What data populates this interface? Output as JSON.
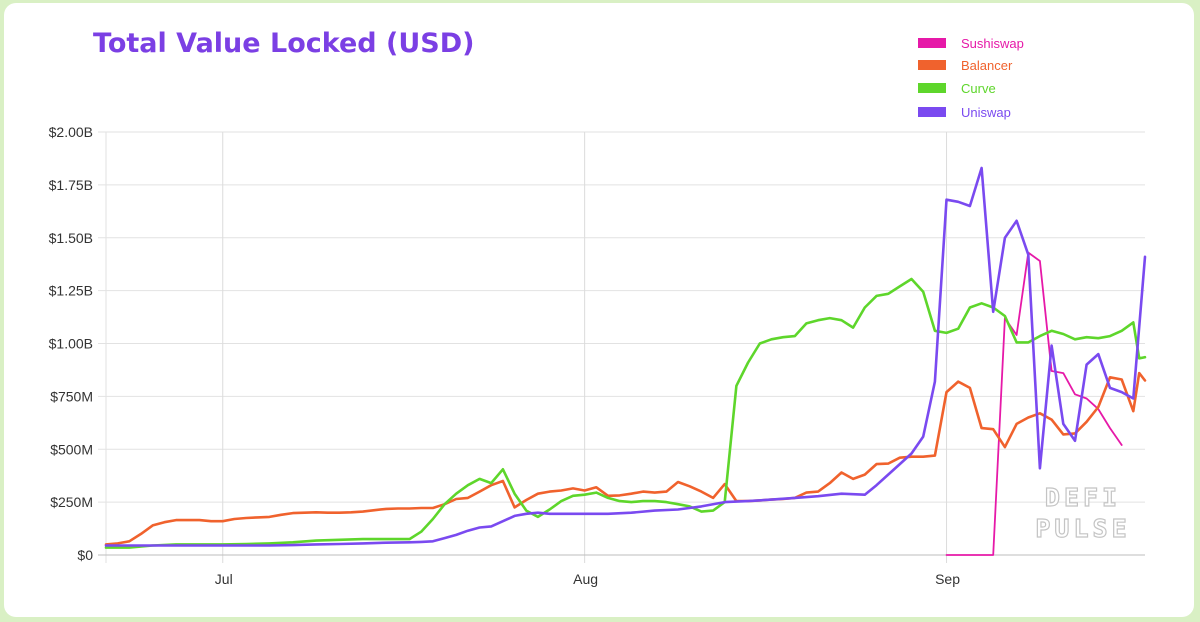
{
  "page_title": "Total Value Locked (USD)",
  "watermark": {
    "line1": "DEFI",
    "line2": "PULSE"
  },
  "chart_data": {
    "type": "line",
    "title": "Total Value Locked (USD)",
    "xlabel": "",
    "ylabel": "",
    "ylim": [
      0,
      2000000000
    ],
    "yticks": [
      {
        "value": 0,
        "label": "$0"
      },
      {
        "value": 250000000,
        "label": "$250M"
      },
      {
        "value": 500000000,
        "label": "$500M"
      },
      {
        "value": 750000000,
        "label": "$750M"
      },
      {
        "value": 1000000000,
        "label": "$1.00B"
      },
      {
        "value": 1250000000,
        "label": "$1.25B"
      },
      {
        "value": 1500000000,
        "label": "$1.50B"
      },
      {
        "value": 1750000000,
        "label": "$1.75B"
      },
      {
        "value": 2000000000,
        "label": "$2.00B"
      }
    ],
    "xlim": [
      "2020-06-21",
      "2020-09-18"
    ],
    "xticks": [
      {
        "date": "2020-07-01",
        "label": "Jul"
      },
      {
        "date": "2020-08-01",
        "label": "Aug"
      },
      {
        "date": "2020-09-01",
        "label": "Sep"
      }
    ],
    "grid": true,
    "legend_position": "top-right",
    "series": [
      {
        "name": "Sushiswap",
        "color": "#e619a8",
        "unit": "USD (millions)",
        "points": [
          [
            "2020-09-01",
            0
          ],
          [
            "2020-09-02",
            0
          ],
          [
            "2020-09-03",
            0
          ],
          [
            "2020-09-04",
            0
          ],
          [
            "2020-09-05",
            0
          ],
          [
            "2020-09-06",
            1120
          ],
          [
            "2020-09-07",
            1040
          ],
          [
            "2020-09-08",
            1430
          ],
          [
            "2020-09-09",
            1390
          ],
          [
            "2020-09-10",
            870
          ],
          [
            "2020-09-11",
            860
          ],
          [
            "2020-09-12",
            760
          ],
          [
            "2020-09-13",
            740
          ],
          [
            "2020-09-14",
            690
          ],
          [
            "2020-09-15",
            600
          ],
          [
            "2020-09-16",
            520
          ]
        ]
      },
      {
        "name": "Balancer",
        "color": "#f0622d",
        "unit": "USD (millions)",
        "points": [
          [
            "2020-06-21",
            50
          ],
          [
            "2020-06-22",
            55
          ],
          [
            "2020-06-23",
            65
          ],
          [
            "2020-06-24",
            100
          ],
          [
            "2020-06-25",
            140
          ],
          [
            "2020-06-26",
            155
          ],
          [
            "2020-06-27",
            165
          ],
          [
            "2020-06-28",
            165
          ],
          [
            "2020-06-29",
            165
          ],
          [
            "2020-06-30",
            160
          ],
          [
            "2020-07-01",
            160
          ],
          [
            "2020-07-02",
            170
          ],
          [
            "2020-07-03",
            175
          ],
          [
            "2020-07-04",
            178
          ],
          [
            "2020-07-05",
            180
          ],
          [
            "2020-07-06",
            190
          ],
          [
            "2020-07-07",
            198
          ],
          [
            "2020-07-08",
            200
          ],
          [
            "2020-07-09",
            202
          ],
          [
            "2020-07-10",
            200
          ],
          [
            "2020-07-11",
            200
          ],
          [
            "2020-07-12",
            202
          ],
          [
            "2020-07-13",
            205
          ],
          [
            "2020-07-14",
            212
          ],
          [
            "2020-07-15",
            218
          ],
          [
            "2020-07-16",
            220
          ],
          [
            "2020-07-17",
            220
          ],
          [
            "2020-07-18",
            222
          ],
          [
            "2020-07-19",
            222
          ],
          [
            "2020-07-20",
            240
          ],
          [
            "2020-07-21",
            265
          ],
          [
            "2020-07-22",
            270
          ],
          [
            "2020-07-23",
            300
          ],
          [
            "2020-07-24",
            330
          ],
          [
            "2020-07-25",
            350
          ],
          [
            "2020-07-26",
            225
          ],
          [
            "2020-07-27",
            260
          ],
          [
            "2020-07-28",
            290
          ],
          [
            "2020-07-29",
            300
          ],
          [
            "2020-07-30",
            305
          ],
          [
            "2020-07-31",
            315
          ],
          [
            "2020-08-01",
            305
          ],
          [
            "2020-08-02",
            320
          ],
          [
            "2020-08-03",
            280
          ],
          [
            "2020-08-04",
            282
          ],
          [
            "2020-08-05",
            290
          ],
          [
            "2020-08-06",
            300
          ],
          [
            "2020-08-07",
            295
          ],
          [
            "2020-08-08",
            300
          ],
          [
            "2020-08-09",
            345
          ],
          [
            "2020-08-10",
            325
          ],
          [
            "2020-08-11",
            300
          ],
          [
            "2020-08-12",
            270
          ],
          [
            "2020-08-13",
            335
          ],
          [
            "2020-08-14",
            255
          ],
          [
            "2020-08-15",
            255
          ],
          [
            "2020-08-16",
            258
          ],
          [
            "2020-08-17",
            262
          ],
          [
            "2020-08-18",
            265
          ],
          [
            "2020-08-19",
            270
          ],
          [
            "2020-08-20",
            295
          ],
          [
            "2020-08-21",
            300
          ],
          [
            "2020-08-22",
            340
          ],
          [
            "2020-08-23",
            390
          ],
          [
            "2020-08-24",
            360
          ],
          [
            "2020-08-25",
            380
          ],
          [
            "2020-08-26",
            430
          ],
          [
            "2020-08-27",
            432
          ],
          [
            "2020-08-28",
            460
          ],
          [
            "2020-08-29",
            465
          ],
          [
            "2020-08-30",
            465
          ],
          [
            "2020-08-31",
            470
          ],
          [
            "2020-09-01",
            770
          ],
          [
            "2020-09-02",
            820
          ],
          [
            "2020-09-03",
            790
          ],
          [
            "2020-09-04",
            600
          ],
          [
            "2020-09-05",
            595
          ],
          [
            "2020-09-06",
            510
          ],
          [
            "2020-09-07",
            620
          ],
          [
            "2020-09-08",
            650
          ],
          [
            "2020-09-09",
            670
          ],
          [
            "2020-09-10",
            640
          ],
          [
            "2020-09-11",
            570
          ],
          [
            "2020-09-12",
            575
          ],
          [
            "2020-09-13",
            630
          ],
          [
            "2020-09-14",
            700
          ],
          [
            "2020-09-15",
            840
          ],
          [
            "2020-09-16",
            830
          ],
          [
            "2020-09-17",
            680
          ],
          [
            "2020-09-17.5",
            860
          ],
          [
            "2020-09-18",
            825
          ]
        ]
      },
      {
        "name": "Curve",
        "color": "#5ed62b",
        "unit": "USD (millions)",
        "points": [
          [
            "2020-06-21",
            35
          ],
          [
            "2020-06-23",
            35
          ],
          [
            "2020-06-25",
            45
          ],
          [
            "2020-06-27",
            50
          ],
          [
            "2020-06-29",
            50
          ],
          [
            "2020-07-01",
            50
          ],
          [
            "2020-07-03",
            52
          ],
          [
            "2020-07-05",
            55
          ],
          [
            "2020-07-07",
            60
          ],
          [
            "2020-07-09",
            68
          ],
          [
            "2020-07-11",
            72
          ],
          [
            "2020-07-13",
            75
          ],
          [
            "2020-07-15",
            75
          ],
          [
            "2020-07-17",
            75
          ],
          [
            "2020-07-18",
            110
          ],
          [
            "2020-07-19",
            170
          ],
          [
            "2020-07-20",
            240
          ],
          [
            "2020-07-21",
            290
          ],
          [
            "2020-07-22",
            330
          ],
          [
            "2020-07-23",
            360
          ],
          [
            "2020-07-24",
            340
          ],
          [
            "2020-07-25",
            405
          ],
          [
            "2020-07-26",
            290
          ],
          [
            "2020-07-27",
            210
          ],
          [
            "2020-07-28",
            180
          ],
          [
            "2020-07-29",
            215
          ],
          [
            "2020-07-30",
            255
          ],
          [
            "2020-07-31",
            280
          ],
          [
            "2020-08-01",
            285
          ],
          [
            "2020-08-02",
            295
          ],
          [
            "2020-08-03",
            270
          ],
          [
            "2020-08-04",
            255
          ],
          [
            "2020-08-05",
            250
          ],
          [
            "2020-08-06",
            255
          ],
          [
            "2020-08-07",
            255
          ],
          [
            "2020-08-08",
            250
          ],
          [
            "2020-08-09",
            240
          ],
          [
            "2020-08-10",
            230
          ],
          [
            "2020-08-11",
            205
          ],
          [
            "2020-08-12",
            210
          ],
          [
            "2020-08-13",
            250
          ],
          [
            "2020-08-14",
            800
          ],
          [
            "2020-08-15",
            910
          ],
          [
            "2020-08-16",
            1000
          ],
          [
            "2020-08-17",
            1020
          ],
          [
            "2020-08-18",
            1030
          ],
          [
            "2020-08-19",
            1035
          ],
          [
            "2020-08-20",
            1095
          ],
          [
            "2020-08-21",
            1110
          ],
          [
            "2020-08-22",
            1120
          ],
          [
            "2020-08-23",
            1110
          ],
          [
            "2020-08-24",
            1075
          ],
          [
            "2020-08-25",
            1170
          ],
          [
            "2020-08-26",
            1225
          ],
          [
            "2020-08-27",
            1235
          ],
          [
            "2020-08-28",
            1270
          ],
          [
            "2020-08-29",
            1305
          ],
          [
            "2020-08-30",
            1245
          ],
          [
            "2020-08-31",
            1060
          ],
          [
            "2020-09-01",
            1050
          ],
          [
            "2020-09-02",
            1070
          ],
          [
            "2020-09-03",
            1170
          ],
          [
            "2020-09-04",
            1190
          ],
          [
            "2020-09-05",
            1170
          ],
          [
            "2020-09-06",
            1130
          ],
          [
            "2020-09-07",
            1005
          ],
          [
            "2020-09-08",
            1005
          ],
          [
            "2020-09-09",
            1035
          ],
          [
            "2020-09-10",
            1060
          ],
          [
            "2020-09-11",
            1045
          ],
          [
            "2020-09-12",
            1020
          ],
          [
            "2020-09-13",
            1030
          ],
          [
            "2020-09-14",
            1025
          ],
          [
            "2020-09-15",
            1035
          ],
          [
            "2020-09-16",
            1060
          ],
          [
            "2020-09-17",
            1100
          ],
          [
            "2020-09-17.5",
            930
          ],
          [
            "2020-09-18",
            935
          ]
        ]
      },
      {
        "name": "Uniswap",
        "color": "#7a4af0",
        "unit": "USD (millions)",
        "points": [
          [
            "2020-06-21",
            45
          ],
          [
            "2020-06-23",
            45
          ],
          [
            "2020-06-25",
            45
          ],
          [
            "2020-06-27",
            45
          ],
          [
            "2020-06-29",
            45
          ],
          [
            "2020-07-01",
            45
          ],
          [
            "2020-07-03",
            45
          ],
          [
            "2020-07-05",
            45
          ],
          [
            "2020-07-07",
            47
          ],
          [
            "2020-07-09",
            50
          ],
          [
            "2020-07-11",
            52
          ],
          [
            "2020-07-13",
            55
          ],
          [
            "2020-07-15",
            58
          ],
          [
            "2020-07-17",
            60
          ],
          [
            "2020-07-18",
            62
          ],
          [
            "2020-07-19",
            65
          ],
          [
            "2020-07-20",
            80
          ],
          [
            "2020-07-21",
            95
          ],
          [
            "2020-07-22",
            115
          ],
          [
            "2020-07-23",
            130
          ],
          [
            "2020-07-24",
            135
          ],
          [
            "2020-07-25",
            160
          ],
          [
            "2020-07-26",
            185
          ],
          [
            "2020-07-27",
            195
          ],
          [
            "2020-07-28",
            200
          ],
          [
            "2020-07-29",
            195
          ],
          [
            "2020-07-30",
            195
          ],
          [
            "2020-08-01",
            195
          ],
          [
            "2020-08-03",
            195
          ],
          [
            "2020-08-05",
            200
          ],
          [
            "2020-08-07",
            210
          ],
          [
            "2020-08-09",
            215
          ],
          [
            "2020-08-11",
            230
          ],
          [
            "2020-08-13",
            250
          ],
          [
            "2020-08-15",
            255
          ],
          [
            "2020-08-17",
            262
          ],
          [
            "2020-08-19",
            270
          ],
          [
            "2020-08-21",
            278
          ],
          [
            "2020-08-23",
            290
          ],
          [
            "2020-08-25",
            285
          ],
          [
            "2020-08-26",
            330
          ],
          [
            "2020-08-27",
            380
          ],
          [
            "2020-08-28",
            430
          ],
          [
            "2020-08-29",
            480
          ],
          [
            "2020-08-30",
            560
          ],
          [
            "2020-08-31",
            820
          ],
          [
            "2020-09-01",
            1680
          ],
          [
            "2020-09-02",
            1670
          ],
          [
            "2020-09-03",
            1650
          ],
          [
            "2020-09-04",
            1830
          ],
          [
            "2020-09-05",
            1150
          ],
          [
            "2020-09-06",
            1500
          ],
          [
            "2020-09-07",
            1580
          ],
          [
            "2020-09-08",
            1420
          ],
          [
            "2020-09-09",
            410
          ],
          [
            "2020-09-10",
            990
          ],
          [
            "2020-09-11",
            620
          ],
          [
            "2020-09-12",
            540
          ],
          [
            "2020-09-13",
            900
          ],
          [
            "2020-09-14",
            950
          ],
          [
            "2020-09-15",
            790
          ],
          [
            "2020-09-16",
            770
          ],
          [
            "2020-09-17",
            740
          ],
          [
            "2020-09-18",
            1410
          ]
        ]
      }
    ]
  }
}
